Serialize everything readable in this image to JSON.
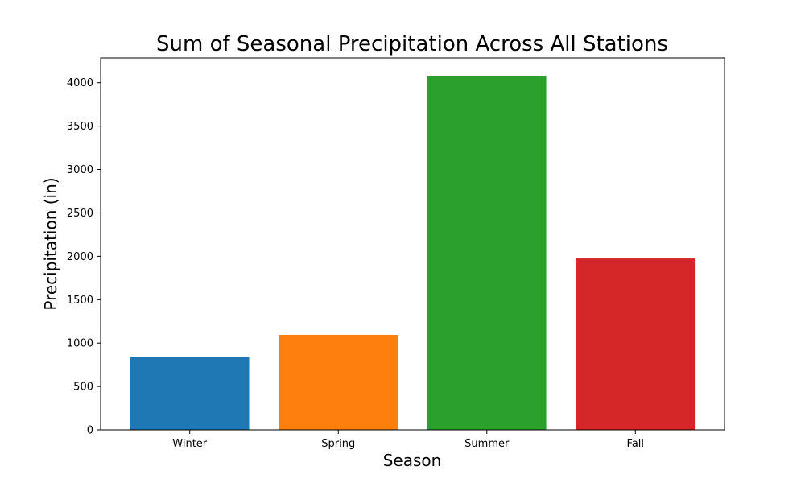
{
  "chart_data": {
    "type": "bar",
    "title": "Sum of Seasonal Precipitation Across All Stations",
    "xlabel": "Season",
    "ylabel": "Precipitation (in)",
    "categories": [
      "Winter",
      "Spring",
      "Summer",
      "Fall"
    ],
    "values": [
      835,
      1095,
      4080,
      1975
    ],
    "colors": [
      "#1f77b4",
      "#ff7f0e",
      "#2ca02c",
      "#d62728"
    ],
    "ylim": [
      0,
      4285
    ],
    "yticks": [
      0,
      500,
      1000,
      1500,
      2000,
      2500,
      3000,
      3500,
      4000
    ],
    "grid": false,
    "legend": "none"
  }
}
